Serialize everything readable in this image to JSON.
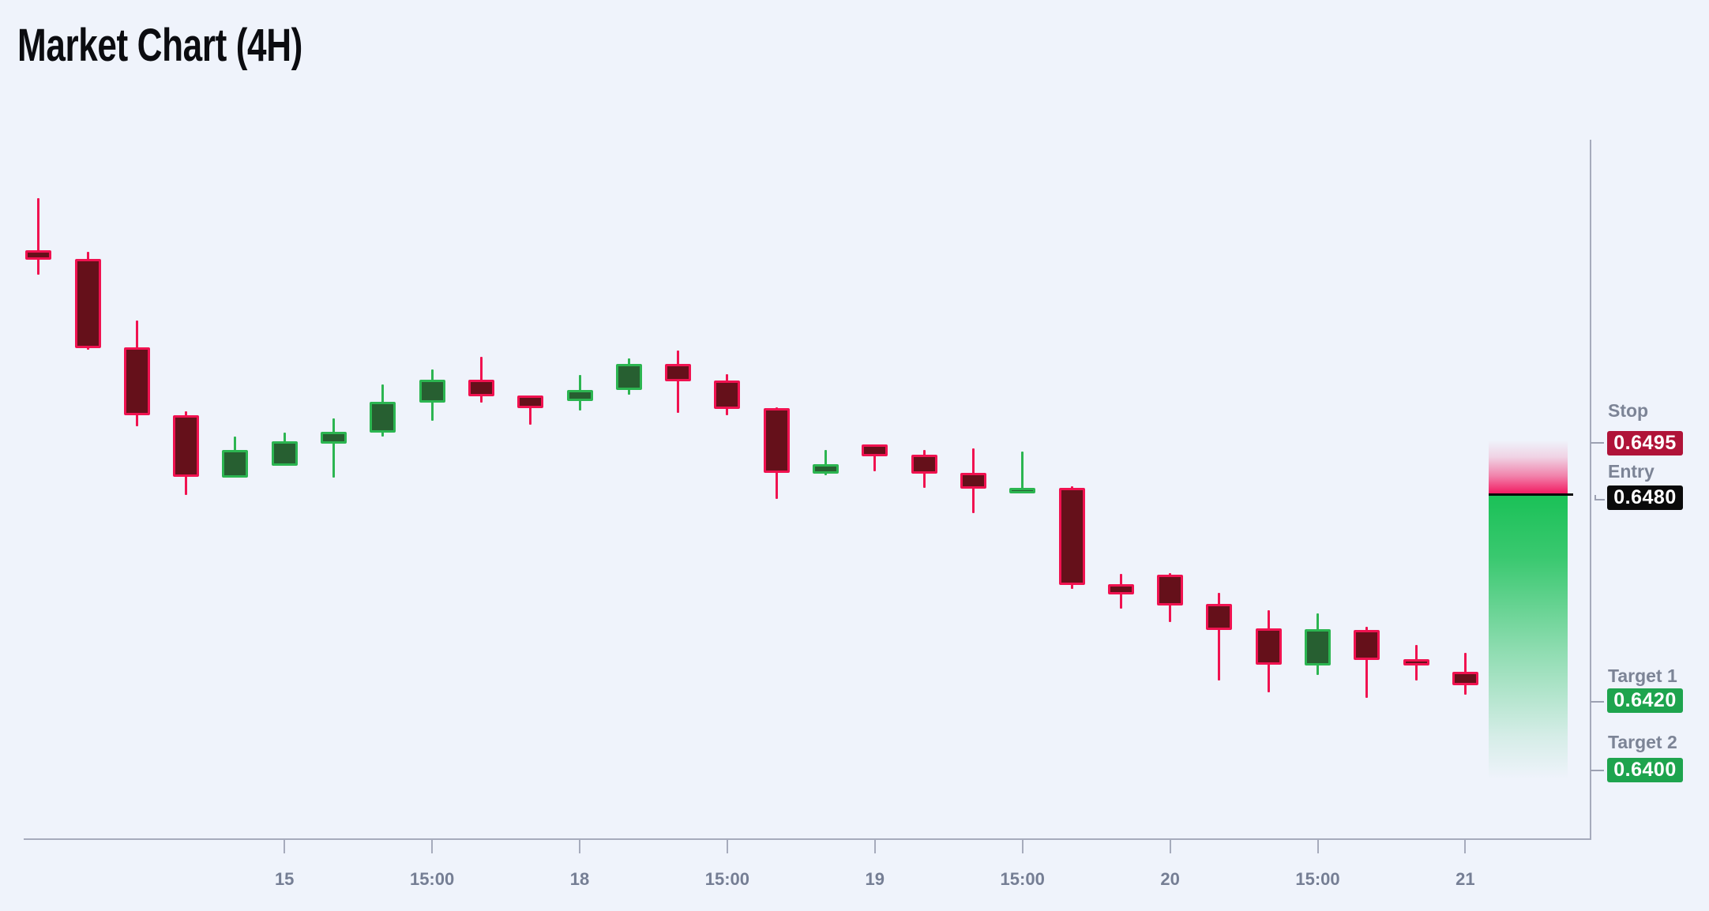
{
  "title": "Market Chart (4H)",
  "colors": {
    "background": "#eff3fb",
    "bull_fill": "#275f31",
    "bull_stroke": "#2cb551",
    "bear_fill": "#65101a",
    "bear_stroke": "#f01250",
    "axis": "#a6abbc",
    "tick_label": "#757e94",
    "level_label": "#7c8496",
    "stop_badge_bg": "#b01338",
    "entry_badge_bg": "#0a0a0a",
    "target_badge_bg": "#1ea44e",
    "badge_text": "#ffffff",
    "entry_line": "#0a0a0a",
    "zone_red": "#f3135c",
    "zone_green": "#1ac157"
  },
  "levels": {
    "stop": {
      "label": "Stop",
      "value": "0.6495"
    },
    "entry": {
      "label": "Entry",
      "value": "0.6480"
    },
    "target1": {
      "label": "Target 1",
      "value": "0.6420"
    },
    "target2": {
      "label": "Target 2",
      "value": "0.6400"
    }
  },
  "chart_data": {
    "type": "candlestick",
    "timeframe": "4H",
    "title": "Market Chart (4H)",
    "price_levels": {
      "stop": 0.6495,
      "entry": 0.648,
      "target1": 0.642,
      "target2": 0.64
    },
    "y_range": [
      0.6395,
      0.658
    ],
    "x_tick_labels": [
      {
        "candle_index": 5,
        "label": "15"
      },
      {
        "candle_index": 8,
        "label": "15:00"
      },
      {
        "candle_index": 11,
        "label": "18"
      },
      {
        "candle_index": 14,
        "label": "15:00"
      },
      {
        "candle_index": 17,
        "label": "19"
      },
      {
        "candle_index": 20,
        "label": "15:00"
      },
      {
        "candle_index": 23,
        "label": "20"
      },
      {
        "candle_index": 26,
        "label": "15:00"
      },
      {
        "candle_index": 29,
        "label": "21"
      }
    ],
    "candles": [
      {
        "o": 0.65509,
        "h": 0.65661,
        "l": 0.65438,
        "c": 0.65482
      },
      {
        "o": 0.65484,
        "h": 0.65505,
        "l": 0.65222,
        "c": 0.65226
      },
      {
        "o": 0.65228,
        "h": 0.65306,
        "l": 0.64999,
        "c": 0.6503
      },
      {
        "o": 0.6503,
        "h": 0.65042,
        "l": 0.64801,
        "c": 0.64853
      },
      {
        "o": 0.64851,
        "h": 0.64969,
        "l": 0.64851,
        "c": 0.6493
      },
      {
        "o": 0.64885,
        "h": 0.64981,
        "l": 0.64885,
        "c": 0.64955
      },
      {
        "o": 0.64949,
        "h": 0.65022,
        "l": 0.6485,
        "c": 0.64984
      },
      {
        "o": 0.6498,
        "h": 0.6512,
        "l": 0.64969,
        "c": 0.65069
      },
      {
        "o": 0.65068,
        "h": 0.65164,
        "l": 0.65016,
        "c": 0.65133
      },
      {
        "o": 0.65134,
        "h": 0.65201,
        "l": 0.65068,
        "c": 0.65087
      },
      {
        "o": 0.65089,
        "h": 0.65089,
        "l": 0.65003,
        "c": 0.65051
      },
      {
        "o": 0.65072,
        "h": 0.65148,
        "l": 0.65045,
        "c": 0.65104
      },
      {
        "o": 0.65104,
        "h": 0.65197,
        "l": 0.65091,
        "c": 0.6518
      },
      {
        "o": 0.6518,
        "h": 0.65218,
        "l": 0.65037,
        "c": 0.6513
      },
      {
        "o": 0.65132,
        "h": 0.65149,
        "l": 0.65031,
        "c": 0.65049
      },
      {
        "o": 0.65051,
        "h": 0.65054,
        "l": 0.64789,
        "c": 0.64863
      },
      {
        "o": 0.64862,
        "h": 0.6493,
        "l": 0.64858,
        "c": 0.6489
      },
      {
        "o": 0.64947,
        "h": 0.64947,
        "l": 0.64869,
        "c": 0.64911
      },
      {
        "o": 0.64917,
        "h": 0.6493,
        "l": 0.6482,
        "c": 0.64862
      },
      {
        "o": 0.64863,
        "h": 0.64936,
        "l": 0.64747,
        "c": 0.64818
      },
      {
        "o": 0.6481,
        "h": 0.64927,
        "l": 0.6481,
        "c": 0.64821
      },
      {
        "o": 0.6482,
        "h": 0.64826,
        "l": 0.64528,
        "c": 0.64538
      },
      {
        "o": 0.64541,
        "h": 0.64572,
        "l": 0.64471,
        "c": 0.64512
      },
      {
        "o": 0.6457,
        "h": 0.64573,
        "l": 0.64431,
        "c": 0.6448
      },
      {
        "o": 0.64484,
        "h": 0.64517,
        "l": 0.64262,
        "c": 0.64408
      },
      {
        "o": 0.64413,
        "h": 0.64465,
        "l": 0.64227,
        "c": 0.64309
      },
      {
        "o": 0.64306,
        "h": 0.64457,
        "l": 0.64278,
        "c": 0.64412
      },
      {
        "o": 0.64409,
        "h": 0.64417,
        "l": 0.64211,
        "c": 0.64322
      },
      {
        "o": 0.64324,
        "h": 0.64365,
        "l": 0.64262,
        "c": 0.64306
      },
      {
        "o": 0.64288,
        "h": 0.64342,
        "l": 0.64221,
        "c": 0.64248
      }
    ]
  }
}
